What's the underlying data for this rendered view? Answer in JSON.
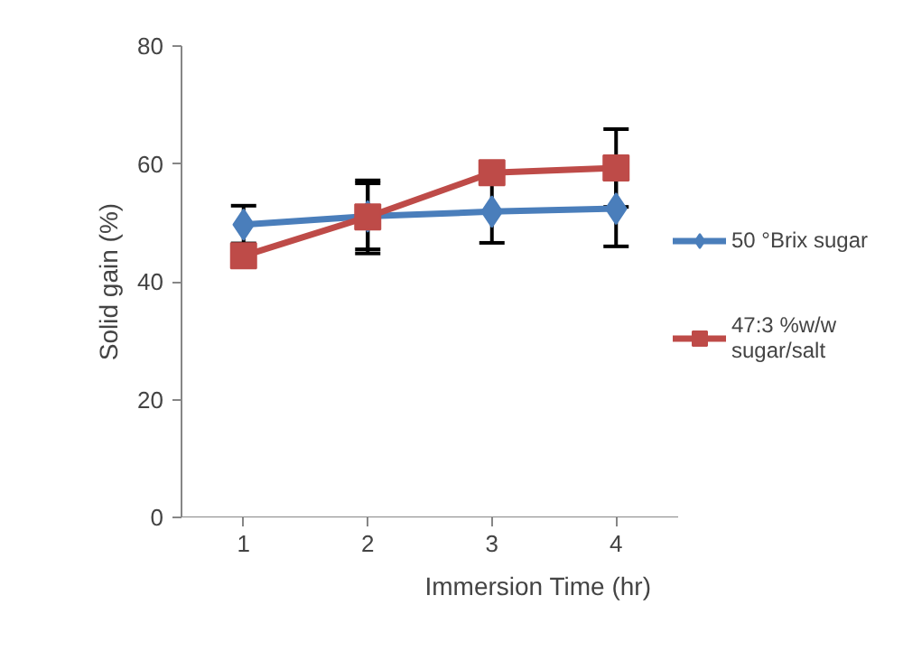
{
  "chart_data": {
    "type": "line",
    "xlabel": "Immersion Time (hr)",
    "ylabel": "Solid gain (%)",
    "categories": [
      "1",
      "2",
      "3",
      "4"
    ],
    "series": [
      {
        "name": "50 °Brix sugar",
        "color": "#4a7ebb",
        "marker": "diamond",
        "values": [
          49.7,
          51.1,
          51.9,
          52.4
        ],
        "errors": [
          3.2,
          5.6,
          5.3,
          6.4
        ]
      },
      {
        "name": "47:3 %w/w sugar/salt",
        "color": "#be4b48",
        "marker": "square",
        "values": [
          44.4,
          51,
          58.5,
          59.3
        ],
        "errors": [
          null,
          6.2,
          null,
          6.6
        ]
      }
    ],
    "ylim": [
      0,
      80
    ],
    "yticks": [
      0,
      20,
      40,
      60,
      80
    ],
    "grid": false,
    "legend": "right",
    "line_style": "solid"
  }
}
